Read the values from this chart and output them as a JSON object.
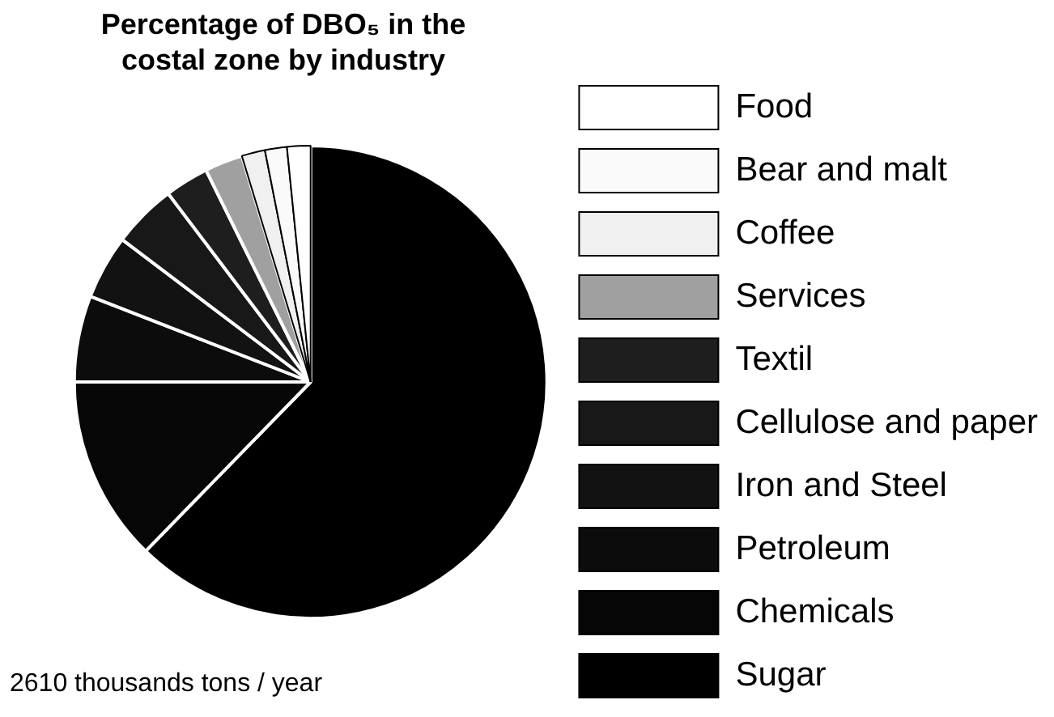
{
  "chart_data": {
    "type": "pie",
    "title": "Percentage of DBO₅ in the costal zone by industry",
    "categories": [
      "Food",
      "Bear and malt",
      "Coffee",
      "Services",
      "Textil",
      "Cellulose and paper",
      "Iron and Steel",
      "Petroleum",
      "Chemicals",
      "Sugar"
    ],
    "values": [
      1.6,
      1.5,
      1.6,
      2.6,
      3.0,
      4.4,
      4.4,
      5.9,
      12.7,
      62.3
    ],
    "colors": [
      "#ffffff",
      "#fafafa",
      "#f0f0f0",
      "#a0a0a0",
      "#1e1e1e",
      "#181818",
      "#121212",
      "#0c0c0c",
      "#060606",
      "#000000"
    ],
    "legend": "right",
    "annotations": [
      "2610 thousands tons / year"
    ]
  }
}
